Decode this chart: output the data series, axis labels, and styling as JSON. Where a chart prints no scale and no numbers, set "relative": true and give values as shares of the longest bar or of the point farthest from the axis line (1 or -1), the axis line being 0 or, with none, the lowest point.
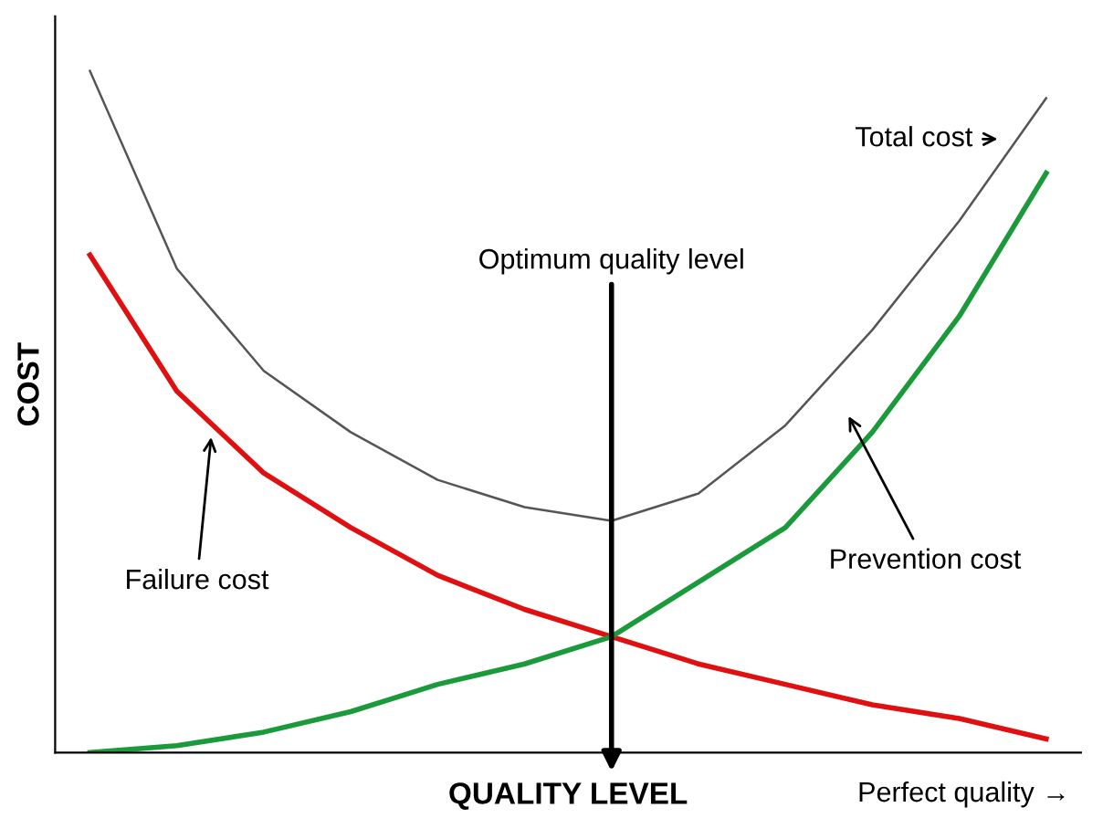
{
  "chart_data": {
    "type": "line",
    "relative": true,
    "xlabel": "QUALITY LEVEL",
    "ylabel": "COST",
    "legend": false,
    "grid": false,
    "categories": [
      null,
      null,
      null,
      null,
      null,
      null,
      null,
      null,
      null,
      null,
      null,
      null
    ],
    "series": [
      {
        "name": "Total cost",
        "color": "#555555",
        "values": [
          1.0,
          0.71,
          0.56,
          0.47,
          0.4,
          0.36,
          0.34,
          0.38,
          0.48,
          0.62,
          0.78,
          0.96
        ]
      },
      {
        "name": "Failure cost",
        "color": "#e01010",
        "values": [
          0.73,
          0.53,
          0.41,
          0.33,
          0.26,
          0.21,
          0.17,
          0.13,
          0.1,
          0.07,
          0.05,
          0.02
        ]
      },
      {
        "name": "Prevention cost",
        "color": "#1a9a3a",
        "values": [
          0.0,
          0.01,
          0.03,
          0.06,
          0.1,
          0.13,
          0.17,
          0.25,
          0.33,
          0.47,
          0.64,
          0.85
        ]
      }
    ],
    "annotations": [
      "Optimum quality level",
      "Perfect quality →"
    ]
  }
}
